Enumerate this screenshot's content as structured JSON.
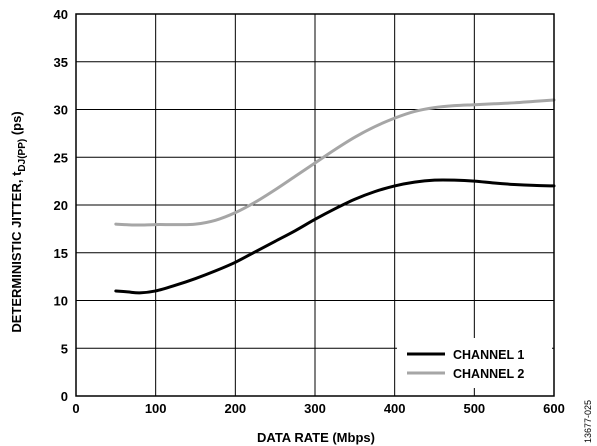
{
  "chart_data": {
    "type": "line",
    "xlabel": "DATA RATE (Mbps)",
    "ylabel": {
      "main": "DETERMINISTIC JITTER, t",
      "sub": "DJ(PP)",
      "unit": " (ps)"
    },
    "xlim": [
      0,
      600
    ],
    "ylim": [
      0,
      40
    ],
    "xticks": [
      0,
      100,
      200,
      300,
      400,
      500,
      600
    ],
    "yticks": [
      0,
      5,
      10,
      15,
      20,
      25,
      30,
      35,
      40
    ],
    "grid": true,
    "legend_position": "bottom-right",
    "series": [
      {
        "name": "CHANNEL 1",
        "color": "#000000",
        "points": [
          [
            50,
            11.0
          ],
          [
            65,
            10.9
          ],
          [
            80,
            10.8
          ],
          [
            100,
            11.0
          ],
          [
            125,
            11.6
          ],
          [
            150,
            12.3
          ],
          [
            175,
            13.1
          ],
          [
            200,
            14.0
          ],
          [
            225,
            15.1
          ],
          [
            250,
            16.2
          ],
          [
            275,
            17.3
          ],
          [
            300,
            18.5
          ],
          [
            325,
            19.6
          ],
          [
            350,
            20.6
          ],
          [
            375,
            21.4
          ],
          [
            400,
            22.0
          ],
          [
            425,
            22.4
          ],
          [
            450,
            22.6
          ],
          [
            475,
            22.6
          ],
          [
            500,
            22.5
          ],
          [
            525,
            22.3
          ],
          [
            550,
            22.15
          ],
          [
            575,
            22.05
          ],
          [
            600,
            22.0
          ]
        ]
      },
      {
        "name": "CHANNEL 2",
        "color": "#a6a6a6",
        "points": [
          [
            50,
            18.0
          ],
          [
            75,
            17.9
          ],
          [
            100,
            17.95
          ],
          [
            125,
            17.95
          ],
          [
            150,
            18.0
          ],
          [
            175,
            18.4
          ],
          [
            200,
            19.2
          ],
          [
            225,
            20.3
          ],
          [
            250,
            21.6
          ],
          [
            275,
            23.0
          ],
          [
            300,
            24.4
          ],
          [
            325,
            25.8
          ],
          [
            350,
            27.1
          ],
          [
            375,
            28.2
          ],
          [
            400,
            29.1
          ],
          [
            425,
            29.8
          ],
          [
            450,
            30.2
          ],
          [
            475,
            30.4
          ],
          [
            500,
            30.5
          ],
          [
            525,
            30.6
          ],
          [
            550,
            30.7
          ],
          [
            575,
            30.85
          ],
          [
            600,
            31.0
          ]
        ]
      }
    ]
  },
  "figure_id": "13677-025"
}
